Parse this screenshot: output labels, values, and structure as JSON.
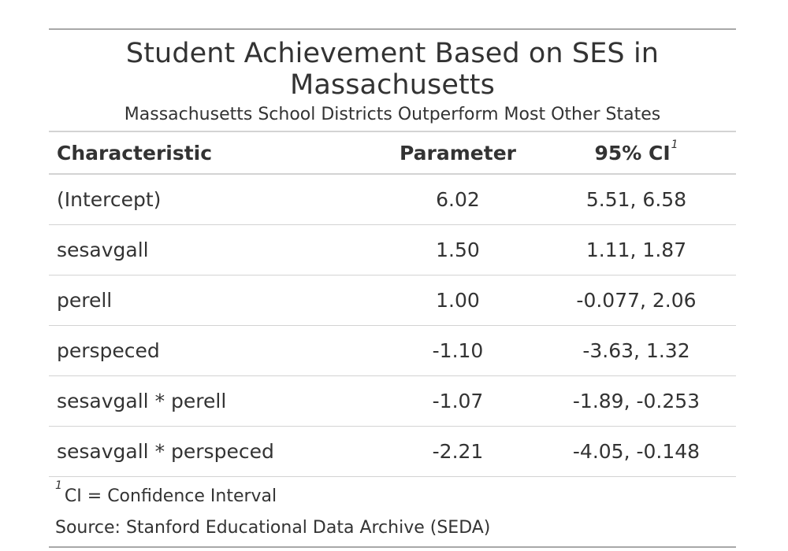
{
  "title": "Student Achievement Based on SES in Massachusetts",
  "subtitle": "Massachusetts School Districts Outperform Most Other States",
  "columns": {
    "characteristic": "Characteristic",
    "parameter": "Parameter",
    "ci": "95% CI",
    "ci_footnote_mark": "1"
  },
  "rows": [
    {
      "characteristic": "(Intercept)",
      "parameter": "6.02",
      "ci": "5.51, 6.58"
    },
    {
      "characteristic": "sesavgall",
      "parameter": "1.50",
      "ci": "1.11, 1.87"
    },
    {
      "characteristic": "perell",
      "parameter": "1.00",
      "ci": "-0.077, 2.06"
    },
    {
      "characteristic": "perspeced",
      "parameter": "-1.10",
      "ci": "-3.63, 1.32"
    },
    {
      "characteristic": "sesavgall * perell",
      "parameter": "-1.07",
      "ci": "-1.89, -0.253"
    },
    {
      "characteristic": "sesavgall * perspeced",
      "parameter": "-2.21",
      "ci": "-4.05, -0.148"
    }
  ],
  "footnote": {
    "mark": "1",
    "text": "CI = Confidence Interval"
  },
  "source": "Source: Stanford Educational Data Archive (SEDA)"
}
